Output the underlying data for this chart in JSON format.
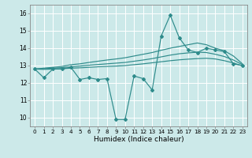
{
  "xlabel": "Humidex (Indice chaleur)",
  "bg_color": "#cce9e9",
  "line_color": "#2e8b8b",
  "grid_color": "#ffffff",
  "xlim": [
    -0.5,
    23.5
  ],
  "ylim": [
    9.5,
    16.5
  ],
  "xticks": [
    0,
    1,
    2,
    3,
    4,
    5,
    6,
    7,
    8,
    9,
    10,
    11,
    12,
    13,
    14,
    15,
    16,
    17,
    18,
    19,
    20,
    21,
    22,
    23
  ],
  "yticks": [
    10,
    11,
    12,
    13,
    14,
    15,
    16
  ],
  "main_y": [
    12.8,
    12.3,
    12.8,
    12.8,
    12.9,
    12.2,
    12.3,
    12.2,
    12.25,
    9.9,
    9.9,
    12.4,
    12.25,
    11.6,
    14.7,
    15.9,
    14.6,
    13.9,
    13.75,
    14.0,
    13.9,
    13.8,
    13.1,
    13.0
  ],
  "upper_y": [
    12.8,
    12.85,
    12.9,
    12.95,
    13.05,
    13.1,
    13.18,
    13.25,
    13.32,
    13.38,
    13.45,
    13.55,
    13.65,
    13.75,
    13.88,
    14.0,
    14.1,
    14.2,
    14.3,
    14.2,
    14.0,
    13.85,
    13.55,
    13.1
  ],
  "mid_y": [
    12.8,
    12.82,
    12.85,
    12.88,
    12.93,
    12.97,
    13.02,
    13.06,
    13.1,
    13.14,
    13.18,
    13.25,
    13.32,
    13.4,
    13.5,
    13.6,
    13.68,
    13.73,
    13.77,
    13.75,
    13.65,
    13.52,
    13.32,
    13.05
  ],
  "lower_y": [
    12.8,
    12.78,
    12.8,
    12.82,
    12.85,
    12.87,
    12.9,
    12.93,
    12.95,
    12.97,
    13.0,
    13.05,
    13.1,
    13.16,
    13.22,
    13.28,
    13.33,
    13.37,
    13.4,
    13.42,
    13.38,
    13.28,
    13.15,
    12.98
  ]
}
